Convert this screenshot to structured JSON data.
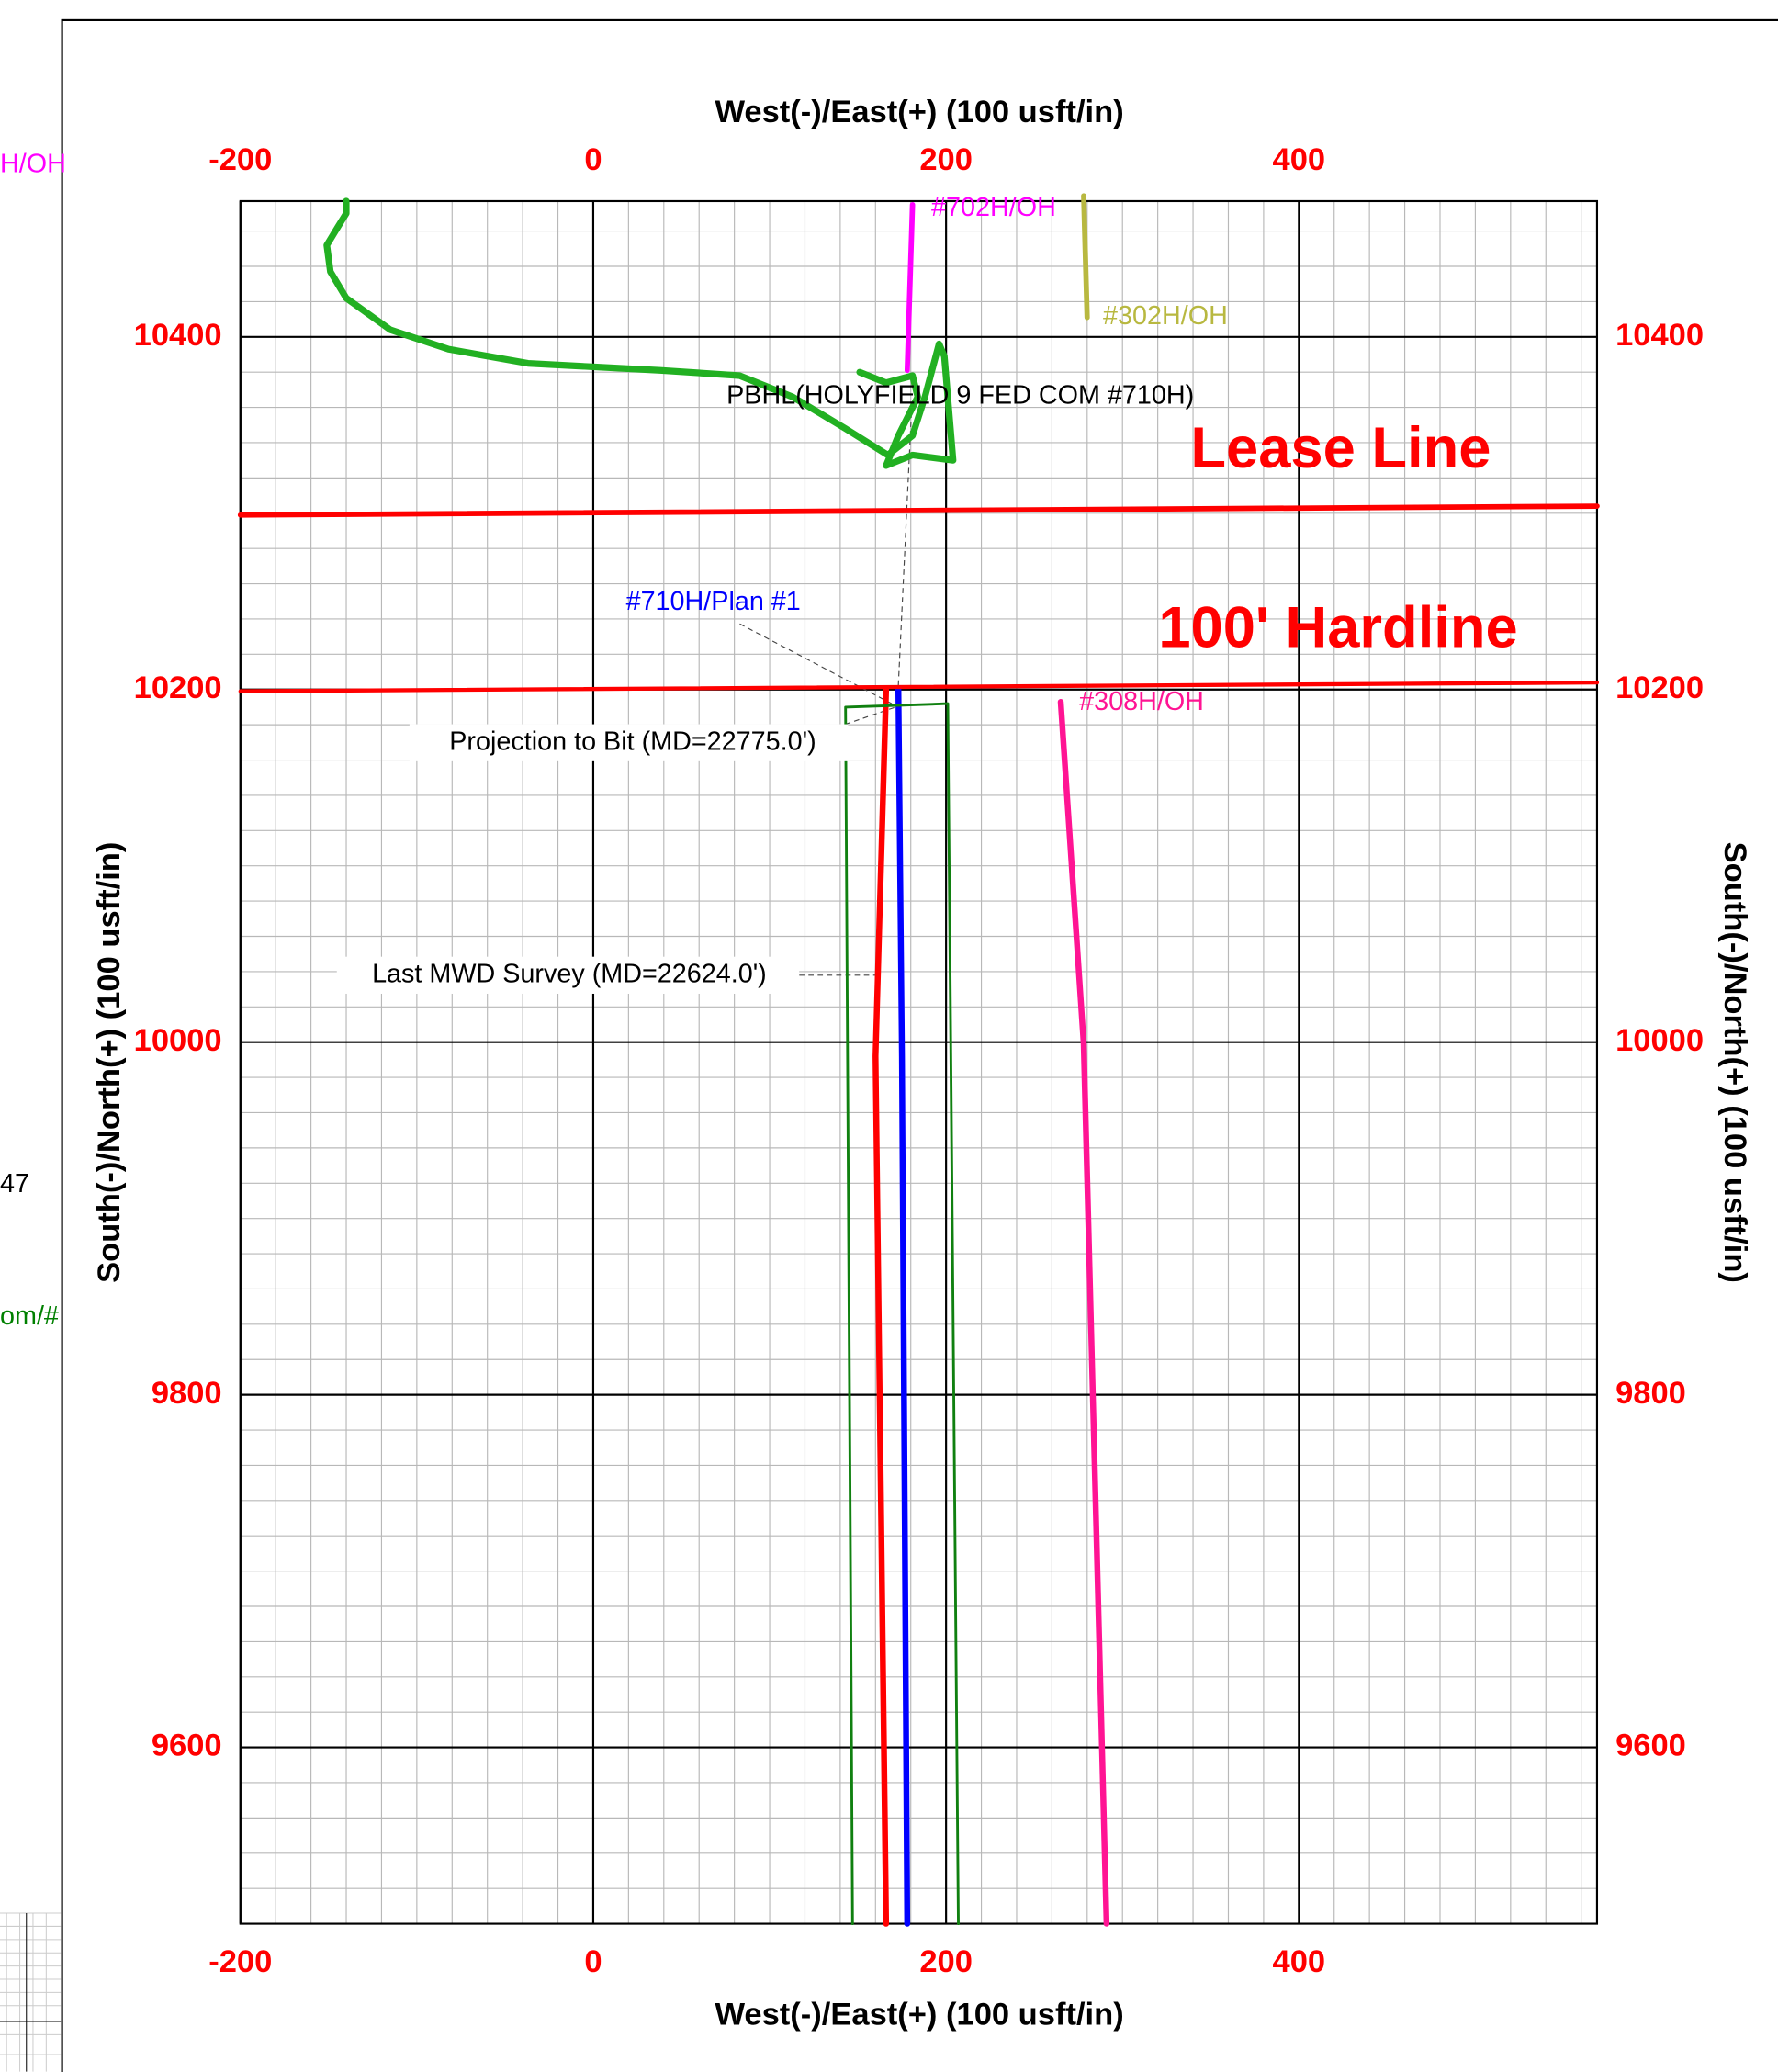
{
  "chart_data": {
    "type": "line",
    "x_title": "West(-)/East(+) (100 usft/in)",
    "y_title": "South(-)/North(+) (100 usft/in)",
    "xlim": [
      -200,
      569
    ],
    "ylim": [
      9500,
      10477
    ],
    "xticks": [
      -200,
      0,
      200,
      400
    ],
    "yticks": [
      9600,
      9800,
      10000,
      10200,
      10400
    ],
    "grid": true,
    "series": [
      {
        "color": "#22b022",
        "x": [
          -140,
          -140,
          -145,
          -151,
          -149,
          -140,
          -115,
          -82,
          -37,
          1,
          38,
          83,
          113,
          143,
          167,
          181,
          188,
          196,
          199,
          204,
          181,
          166,
          173,
          184,
          181,
          166,
          151
        ],
        "values": [
          10477,
          10470,
          10462,
          10452,
          10437,
          10422,
          10404,
          10393,
          10385,
          10383,
          10381,
          10378,
          10366,
          10348,
          10333,
          10344,
          10366,
          10396,
          10389,
          10330,
          10333,
          10327,
          10344,
          10366,
          10378,
          10374,
          10380
        ]
      },
      {
        "name": "#702H/OH",
        "color": "#ff00ff",
        "x": [
          178,
          181
        ],
        "values": [
          10381,
          10475
        ]
      },
      {
        "name": "#302H/OH",
        "color": "#b8b840",
        "x": [
          278,
          280
        ],
        "values": [
          10480,
          10411
        ]
      },
      {
        "name": "#308H/OH",
        "color": "#ff1493",
        "x": [
          265,
          278,
          291
        ],
        "values": [
          10193,
          9999,
          9500
        ]
      },
      {
        "color": "#ff0000",
        "x": [
          166,
          160,
          166
        ],
        "values": [
          10200,
          9992,
          9500
        ]
      },
      {
        "name": "#710H/Plan  #1",
        "color": "#0000ff",
        "x": [
          173,
          175,
          178
        ],
        "values": [
          10200,
          9992,
          9500
        ]
      },
      {
        "color": "#108010",
        "x": [
          147,
          143,
          201,
          207
        ],
        "values": [
          9500,
          10190,
          10192,
          9500
        ]
      },
      {
        "name": "Lease Line",
        "color": "#ff0000",
        "x": [
          -200,
          569
        ],
        "values": [
          10299,
          10304
        ]
      },
      {
        "name": "100' Hardline",
        "color": "#ff0000",
        "x": [
          -200,
          569
        ],
        "values": [
          10199,
          10204
        ]
      }
    ],
    "annotations": [
      "PBHL(HOLYFIELD 9 FED COM #710H)",
      "Projection to Bit  (MD=22775.0')",
      "Last MWD Survey (MD=22624.0')"
    ],
    "fragments": [
      "H/OH",
      "47",
      "om/#"
    ]
  }
}
